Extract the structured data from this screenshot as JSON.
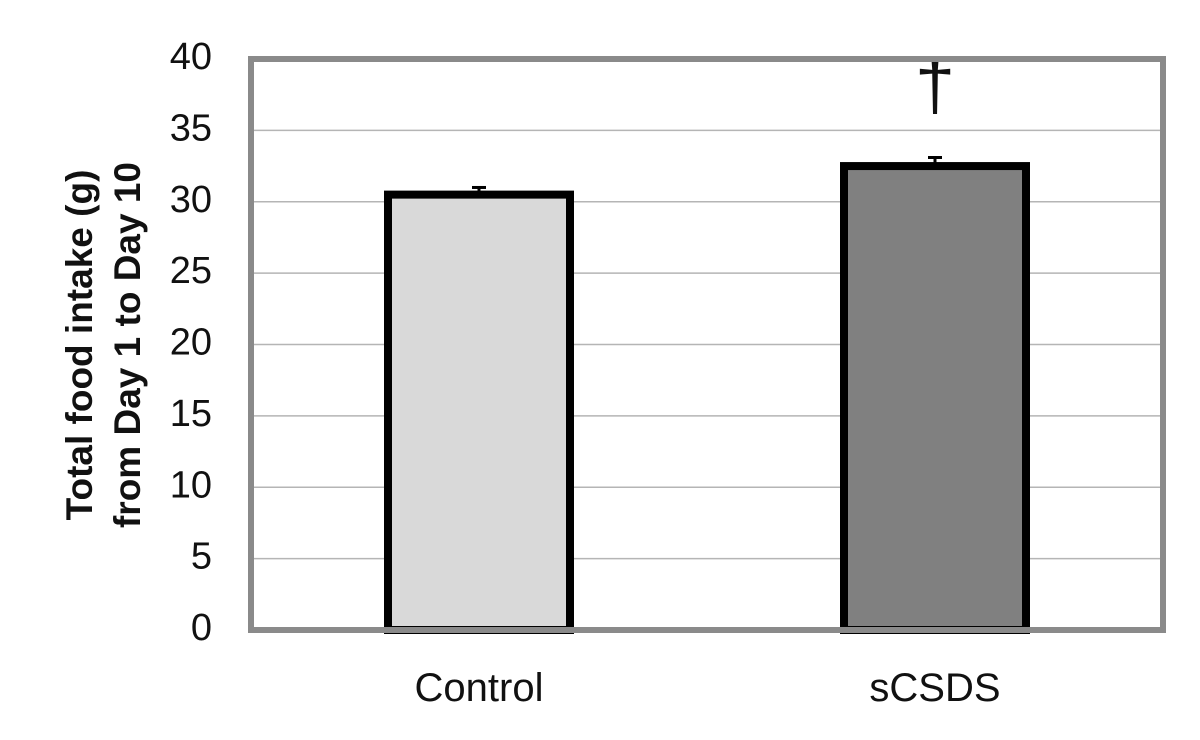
{
  "chart_data": {
    "type": "bar",
    "title": "",
    "xlabel": "",
    "ylabel_lines": [
      "Total food intake (g)",
      "from Day 1 to Day 10"
    ],
    "categories": [
      "Control",
      "sCSDS"
    ],
    "values": [
      30.5,
      32.5
    ],
    "errors": [
      0.5,
      0.6
    ],
    "bar_colors": [
      "#d9d9d9",
      "#808080"
    ],
    "significance": [
      "",
      "†"
    ],
    "ylim": [
      0,
      40
    ],
    "yticks": [
      "0",
      "5",
      "10",
      "15",
      "20",
      "25",
      "30",
      "35",
      "40"
    ],
    "grid": true,
    "legend": "none"
  },
  "colors": {
    "bar_edge": "#000000",
    "frame": "#8a8a8a",
    "grid": "#b5b5b5",
    "text": "#111111"
  }
}
